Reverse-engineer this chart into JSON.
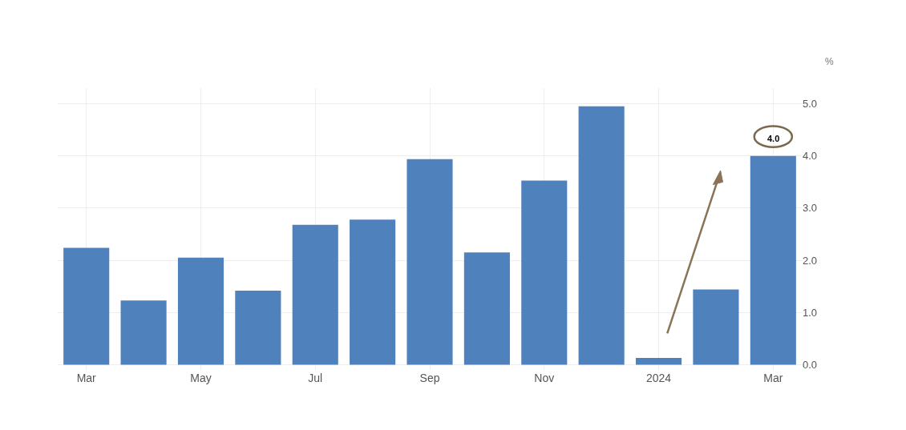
{
  "chart_data": {
    "type": "bar",
    "ylabel": "%",
    "categories": [
      "Mar",
      null,
      "May",
      null,
      "Jul",
      null,
      "Sep",
      null,
      "Nov",
      null,
      "2024",
      null,
      "Mar"
    ],
    "values": [
      2.24,
      1.23,
      2.05,
      1.42,
      2.68,
      2.78,
      3.94,
      2.15,
      3.53,
      4.95,
      0.13,
      1.44,
      4.0
    ],
    "value_labels": [
      null,
      null,
      null,
      null,
      null,
      null,
      null,
      null,
      null,
      null,
      null,
      null,
      "4.0"
    ],
    "color": "#4f81bd",
    "ylim": [
      -0.1,
      5.3
    ],
    "yticks": [
      {
        "value": 0,
        "label": "0.0"
      },
      {
        "value": 1,
        "label": "1.0"
      },
      {
        "value": 2,
        "label": "2.0"
      },
      {
        "value": 3,
        "label": "3.0"
      },
      {
        "value": 4,
        "label": "4.0"
      },
      {
        "value": 5,
        "label": "5.0"
      }
    ],
    "grid": true,
    "legend": false
  }
}
